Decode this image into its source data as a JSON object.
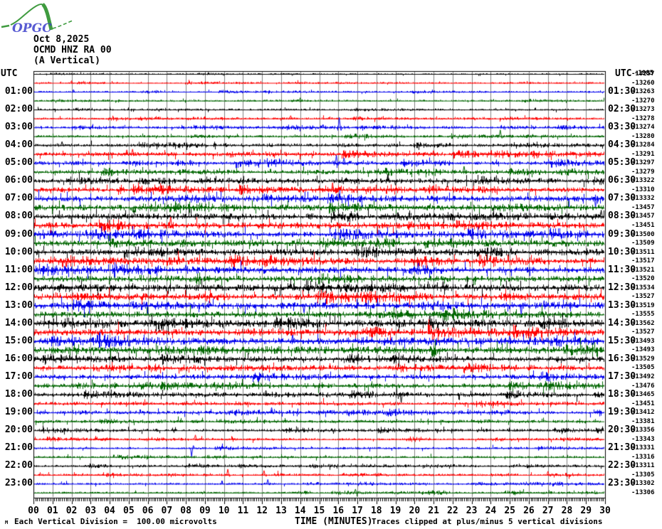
{
  "logo": {
    "text": "OPGC",
    "curve_color": "#3f9b3f",
    "text_color": "#3a3ecb"
  },
  "header": {
    "date": "Oct 8,2025",
    "station": "OCMD HNZ RA 00",
    "component": "(A Vertical)"
  },
  "footer": {
    "mark": "M",
    "left": "Each Vertical Division =  100.00 microvolts",
    "right": "Traces clipped at plus/minus 5 vertical divisions"
  },
  "chart_data": {
    "type": "line",
    "subtype": "helicorder",
    "title": "OCMD HNZ RA 00 (A Vertical) Oct 8,2025",
    "x_axis": {
      "title": "TIME (MINUTES)",
      "range": [
        0,
        30
      ],
      "minor_tick": 0.1,
      "ticks": [
        "00",
        "01",
        "02",
        "03",
        "04",
        "05",
        "06",
        "07",
        "08",
        "09",
        "10",
        "11",
        "12",
        "13",
        "14",
        "15",
        "16",
        "17",
        "18",
        "19",
        "20",
        "21",
        "22",
        "23",
        "24",
        "25",
        "26",
        "27",
        "28",
        "29",
        "30"
      ]
    },
    "left_axis_label": "UTC",
    "right_axis_label": "UTC",
    "left_labels": [
      "01:00",
      "02:00",
      "03:00",
      "04:00",
      "05:00",
      "06:00",
      "07:00",
      "08:00",
      "09:00",
      "10:00",
      "11:00",
      "12:00",
      "13:00",
      "14:00",
      "15:00",
      "16:00",
      "17:00",
      "18:00",
      "19:00",
      "20:00",
      "21:00",
      "22:00",
      "23:00"
    ],
    "right_labels": [
      "01:30",
      "02:30",
      "03:30",
      "04:30",
      "05:30",
      "06:30",
      "07:30",
      "08:30",
      "09:30",
      "10:30",
      "11:30",
      "12:30",
      "13:30",
      "14:30",
      "15:30",
      "16:30",
      "17:30",
      "18:30",
      "19:30",
      "20:30",
      "21:30",
      "22:30",
      "23:30"
    ],
    "overlap_value": "-1985",
    "grid_color": "#808080",
    "trace_colors_cycle": [
      "#000000",
      "#ff0000",
      "#0000ee",
      "#006600"
    ],
    "traces": [
      {
        "utc": "00:00",
        "value": "-13257",
        "amp": 0.6,
        "spikes": []
      },
      {
        "utc": "00:30",
        "value": "-13260",
        "amp": 0.6,
        "spikes": [
          [
            2.0,
            3
          ]
        ]
      },
      {
        "utc": "01:00",
        "value": "-13263",
        "amp": 0.7,
        "spikes": [
          [
            2.1,
            3
          ]
        ]
      },
      {
        "utc": "01:30",
        "value": "-13270",
        "amp": 0.7,
        "spikes": [
          [
            14.0,
            4
          ]
        ]
      },
      {
        "utc": "02:00",
        "value": "-13273",
        "amp": 0.8,
        "spikes": []
      },
      {
        "utc": "02:30",
        "value": "-13278",
        "amp": 0.9,
        "spikes": [
          [
            13.5,
            4
          ]
        ]
      },
      {
        "utc": "03:00",
        "value": "-13274",
        "amp": 1.0,
        "spikes": [
          [
            15.2,
            4
          ],
          [
            16.05,
            14
          ]
        ]
      },
      {
        "utc": "03:30",
        "value": "-13280",
        "amp": 1.0,
        "spikes": [
          [
            24.5,
            9
          ]
        ]
      },
      {
        "utc": "04:00",
        "value": "-13284",
        "amp": 1.4,
        "spikes": [
          [
            1.5,
            5
          ]
        ]
      },
      {
        "utc": "04:30",
        "value": "-13291",
        "amp": 1.6,
        "spikes": [
          [
            4.9,
            6
          ],
          [
            5.2,
            7
          ],
          [
            21.0,
            5
          ]
        ]
      },
      {
        "utc": "05:00",
        "value": "-13297",
        "amp": 1.7,
        "spikes": [
          [
            15.9,
            11
          ],
          [
            16.3,
            7
          ]
        ]
      },
      {
        "utc": "05:30",
        "value": "-13279",
        "amp": 1.7,
        "spikes": [
          [
            22.6,
            8
          ]
        ]
      },
      {
        "utc": "06:00",
        "value": "-13322",
        "amp": 1.9,
        "spikes": [
          [
            18.6,
            9
          ],
          [
            19.0,
            -6
          ]
        ]
      },
      {
        "utc": "06:30",
        "value": "-13310",
        "amp": 2.0,
        "spikes": [
          [
            8.0,
            6
          ],
          [
            15.7,
            10
          ],
          [
            21.0,
            6
          ]
        ]
      },
      {
        "utc": "07:00",
        "value": "-13332",
        "amp": 2.4,
        "spikes": [
          [
            29.5,
            -12
          ]
        ]
      },
      {
        "utc": "07:30",
        "value": "-13457",
        "amp": 2.4,
        "spikes": []
      },
      {
        "utc": "08:00",
        "value": "-13457",
        "amp": 2.6,
        "spikes": [
          [
            29.8,
            9
          ]
        ]
      },
      {
        "utc": "08:30",
        "value": "-13451",
        "amp": 2.6,
        "spikes": [
          [
            7.2,
            12
          ]
        ]
      },
      {
        "utc": "09:00",
        "value": "-13500",
        "amp": 2.6,
        "spikes": []
      },
      {
        "utc": "09:30",
        "value": "-13509",
        "amp": 2.4,
        "spikes": []
      },
      {
        "utc": "10:00",
        "value": "-13511",
        "amp": 2.6,
        "spikes": [
          [
            20.0,
            8
          ]
        ]
      },
      {
        "utc": "10:30",
        "value": "-13517",
        "amp": 2.4,
        "spikes": []
      },
      {
        "utc": "11:00",
        "value": "-13521",
        "amp": 2.7,
        "spikes": [
          [
            8.0,
            7
          ],
          [
            20.2,
            10
          ]
        ]
      },
      {
        "utc": "11:30",
        "value": "-13520",
        "amp": 2.4,
        "spikes": []
      },
      {
        "utc": "12:00",
        "value": "-13534",
        "amp": 2.8,
        "spikes": [
          [
            21.5,
            9
          ]
        ]
      },
      {
        "utc": "12:30",
        "value": "-13527",
        "amp": 2.7,
        "spikes": []
      },
      {
        "utc": "13:00",
        "value": "-13519",
        "amp": 2.7,
        "spikes": [
          [
            14.2,
            -10
          ],
          [
            25.6,
            -13
          ],
          [
            26.8,
            7
          ]
        ]
      },
      {
        "utc": "13:30",
        "value": "-13555",
        "amp": 2.5,
        "spikes": []
      },
      {
        "utc": "14:00",
        "value": "-13562",
        "amp": 2.9,
        "spikes": [
          [
            13.0,
            6
          ],
          [
            20.8,
            11
          ]
        ]
      },
      {
        "utc": "14:30",
        "value": "-13527",
        "amp": 2.7,
        "spikes": []
      },
      {
        "utc": "15:00",
        "value": "-13493",
        "amp": 2.7,
        "spikes": [
          [
            13.6,
            9
          ],
          [
            25.0,
            7
          ]
        ]
      },
      {
        "utc": "15:30",
        "value": "-13493",
        "amp": 3.1,
        "spikes": []
      },
      {
        "utc": "16:00",
        "value": "-13529",
        "amp": 2.2,
        "spikes": []
      },
      {
        "utc": "16:30",
        "value": "-13505",
        "amp": 2.0,
        "spikes": []
      },
      {
        "utc": "17:00",
        "value": "-13492",
        "amp": 2.0,
        "spikes": []
      },
      {
        "utc": "17:30",
        "value": "-13476",
        "amp": 1.9,
        "spikes": []
      },
      {
        "utc": "18:00",
        "value": "-13465",
        "amp": 1.8,
        "spikes": [
          [
            12.2,
            6
          ],
          [
            19.3,
            -11
          ]
        ]
      },
      {
        "utc": "18:30",
        "value": "-13451",
        "amp": 1.5,
        "spikes": []
      },
      {
        "utc": "19:00",
        "value": "-13412",
        "amp": 1.4,
        "spikes": [
          [
            12.5,
            7
          ]
        ]
      },
      {
        "utc": "19:30",
        "value": "-13381",
        "amp": 1.3,
        "spikes": []
      },
      {
        "utc": "20:00",
        "value": "-13356",
        "amp": 1.2,
        "spikes": []
      },
      {
        "utc": "20:30",
        "value": "-13343",
        "amp": 1.0,
        "spikes": [
          [
            8.5,
            6
          ]
        ]
      },
      {
        "utc": "21:00",
        "value": "-13331",
        "amp": 1.0,
        "spikes": [
          [
            8.3,
            -12
          ]
        ]
      },
      {
        "utc": "21:30",
        "value": "-13316",
        "amp": 0.9,
        "spikes": []
      },
      {
        "utc": "22:00",
        "value": "-13311",
        "amp": 0.9,
        "spikes": []
      },
      {
        "utc": "22:30",
        "value": "-13305",
        "amp": 0.9,
        "spikes": [
          [
            10.2,
            8
          ],
          [
            12.1,
            6
          ],
          [
            27.0,
            5
          ]
        ]
      },
      {
        "utc": "23:00",
        "value": "-13302",
        "amp": 0.9,
        "spikes": [
          [
            12.3,
            6
          ]
        ]
      },
      {
        "utc": "23:30",
        "value": "-13306",
        "amp": 0.8,
        "spikes": [
          [
            16.9,
            5
          ]
        ]
      }
    ]
  }
}
